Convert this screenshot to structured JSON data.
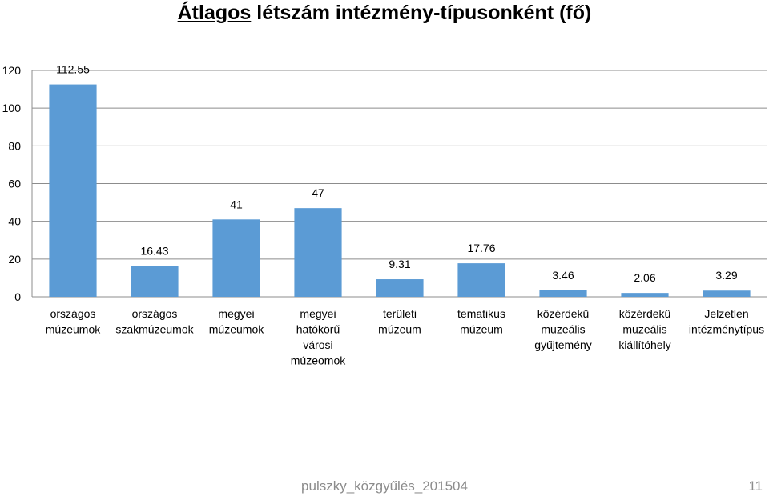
{
  "title": {
    "underlined": "Átlagos",
    "rest": " létszám intézmény-típusonként (fő)"
  },
  "chart_data": {
    "type": "bar",
    "title": "Átlagos létszám intézmény-típusonként (fő)",
    "categories": [
      [
        "országos",
        "múzeumok"
      ],
      [
        "országos",
        "szakmúzeumok"
      ],
      [
        "megyei",
        "múzeumok"
      ],
      [
        "megyei",
        "hatókörű",
        "városi",
        "múzeomok"
      ],
      [
        "területi",
        "múzeum"
      ],
      [
        "tematikus",
        "múzeum"
      ],
      [
        "közérdekű",
        "muzeális",
        "gyűjtemény"
      ],
      [
        "közérdekű",
        "muzeális",
        "kiállítóhely"
      ],
      [
        "Jelzetlen",
        "intézménytípus"
      ]
    ],
    "values": [
      112.55,
      16.43,
      41,
      47,
      9.31,
      17.76,
      3.46,
      2.06,
      3.29
    ],
    "data_labels": [
      "112.55",
      "16.43",
      "41",
      "47",
      "9.31",
      "17.76",
      "3.46",
      "2.06",
      "3.29"
    ],
    "y_ticks": [
      0,
      20,
      40,
      60,
      80,
      100,
      120
    ],
    "ylim": [
      0,
      120
    ],
    "grid": true,
    "bar_color": "#5b9bd5",
    "grid_color": "#8c8c8c",
    "xlabel": "",
    "ylabel": ""
  },
  "footer": {
    "filename": "pulszky_közgyűlés_201504",
    "page_number": "11"
  }
}
